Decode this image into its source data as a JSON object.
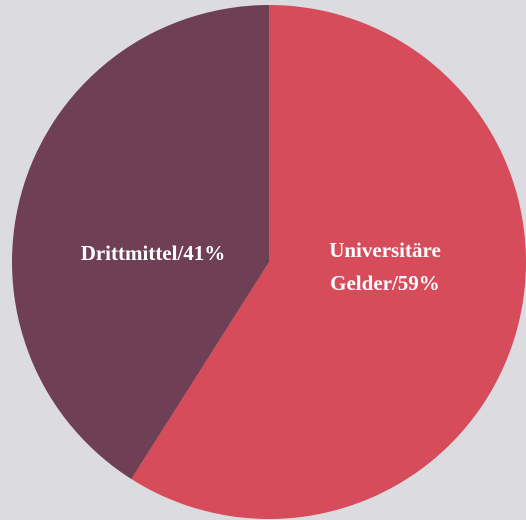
{
  "chart_data": {
    "type": "pie",
    "values": [
      59,
      41
    ],
    "value_labels": [
      "Universitäre Gelder/59%",
      "Drittmittel/41%"
    ],
    "colors": [
      "#d64c5a",
      "#6e3f55"
    ],
    "background": "#dcdbe0"
  }
}
